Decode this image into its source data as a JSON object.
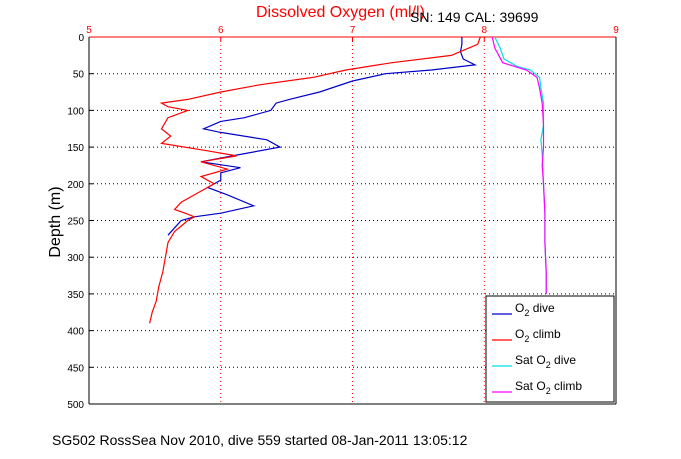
{
  "title": "Dissolved Oxygen (ml/l)",
  "serial_info": "SN: 149  CAL: 39699",
  "caption": "SG502 RossSea Nov 2010, dive 559 started 08-Jan-2011 13:05:12",
  "chart_data": {
    "type": "line",
    "title": "Dissolved Oxygen (ml/l)",
    "xlabel": "Dissolved Oxygen (ml/l)",
    "ylabel": "Depth (m)",
    "xlim": [
      5,
      9
    ],
    "ylim": [
      0,
      500
    ],
    "y_reversed": true,
    "x_axis_position": "top",
    "x_ticks": [
      5,
      6,
      7,
      8,
      9
    ],
    "x_tick_labels": [
      "5",
      "6",
      "7",
      "8",
      "9"
    ],
    "y_ticks": [
      0,
      50,
      100,
      150,
      200,
      250,
      300,
      350,
      400,
      450,
      500
    ],
    "y_tick_labels": [
      "0",
      "50",
      "100",
      "150",
      "200",
      "250",
      "300",
      "350",
      "400",
      "450",
      "500"
    ],
    "grid": true,
    "legend_position": "bottom-right",
    "series": [
      {
        "name": "O2 dive",
        "color": "#0000cc",
        "points": [
          [
            7.83,
            0
          ],
          [
            7.83,
            10
          ],
          [
            7.82,
            20
          ],
          [
            7.84,
            30
          ],
          [
            7.93,
            38
          ],
          [
            7.6,
            45
          ],
          [
            7.25,
            50
          ],
          [
            7.0,
            60
          ],
          [
            6.75,
            75
          ],
          [
            6.52,
            85
          ],
          [
            6.42,
            90
          ],
          [
            6.38,
            100
          ],
          [
            6.18,
            110
          ],
          [
            6.0,
            115
          ],
          [
            5.87,
            125
          ],
          [
            6.0,
            130
          ],
          [
            6.35,
            140
          ],
          [
            6.45,
            150
          ],
          [
            6.15,
            160
          ],
          [
            5.85,
            170
          ],
          [
            6.15,
            178
          ],
          [
            6.0,
            185
          ],
          [
            6.0,
            195
          ],
          [
            5.9,
            205
          ],
          [
            6.05,
            215
          ],
          [
            6.25,
            230
          ],
          [
            6.0,
            240
          ],
          [
            5.8,
            245
          ],
          [
            5.7,
            250
          ],
          [
            5.65,
            260
          ],
          [
            5.6,
            270
          ]
        ]
      },
      {
        "name": "O2 climb",
        "color": "#ff0000",
        "points": [
          [
            7.97,
            0
          ],
          [
            7.95,
            10
          ],
          [
            7.75,
            25
          ],
          [
            7.3,
            35
          ],
          [
            6.95,
            45
          ],
          [
            6.7,
            55
          ],
          [
            6.3,
            65
          ],
          [
            6.0,
            75
          ],
          [
            5.75,
            85
          ],
          [
            5.55,
            90
          ],
          [
            5.6,
            95
          ],
          [
            5.75,
            100
          ],
          [
            5.6,
            110
          ],
          [
            5.55,
            125
          ],
          [
            5.62,
            135
          ],
          [
            5.55,
            145
          ],
          [
            5.9,
            155
          ],
          [
            6.12,
            162
          ],
          [
            5.85,
            170
          ],
          [
            6.05,
            180
          ],
          [
            5.85,
            190
          ],
          [
            5.95,
            200
          ],
          [
            5.85,
            210
          ],
          [
            5.7,
            225
          ],
          [
            5.65,
            235
          ],
          [
            5.73,
            240
          ],
          [
            5.8,
            245
          ],
          [
            5.75,
            250
          ],
          [
            5.65,
            265
          ],
          [
            5.6,
            280
          ],
          [
            5.58,
            300
          ],
          [
            5.56,
            320
          ],
          [
            5.53,
            340
          ],
          [
            5.51,
            360
          ],
          [
            5.48,
            375
          ],
          [
            5.46,
            390
          ]
        ]
      },
      {
        "name": "Sat O2 dive",
        "color": "#00e0e0",
        "points": [
          [
            8.08,
            0
          ],
          [
            8.12,
            15
          ],
          [
            8.15,
            30
          ],
          [
            8.25,
            40
          ],
          [
            8.35,
            45
          ],
          [
            8.42,
            55
          ],
          [
            8.43,
            70
          ],
          [
            8.45,
            90
          ],
          [
            8.45,
            120
          ],
          [
            8.43,
            140
          ],
          [
            8.44,
            160
          ],
          [
            8.45,
            200
          ],
          [
            8.46,
            240
          ],
          [
            8.46,
            280
          ],
          [
            8.47,
            320
          ],
          [
            8.47,
            350
          ]
        ]
      },
      {
        "name": "Sat O2 climb",
        "color": "#ff00ff",
        "points": [
          [
            8.06,
            0
          ],
          [
            8.08,
            15
          ],
          [
            8.14,
            35
          ],
          [
            8.32,
            45
          ],
          [
            8.4,
            55
          ],
          [
            8.42,
            70
          ],
          [
            8.44,
            90
          ],
          [
            8.45,
            120
          ],
          [
            8.45,
            150
          ],
          [
            8.44,
            175
          ],
          [
            8.45,
            200
          ],
          [
            8.46,
            240
          ],
          [
            8.46,
            280
          ],
          [
            8.47,
            320
          ],
          [
            8.47,
            350
          ]
        ]
      }
    ]
  }
}
